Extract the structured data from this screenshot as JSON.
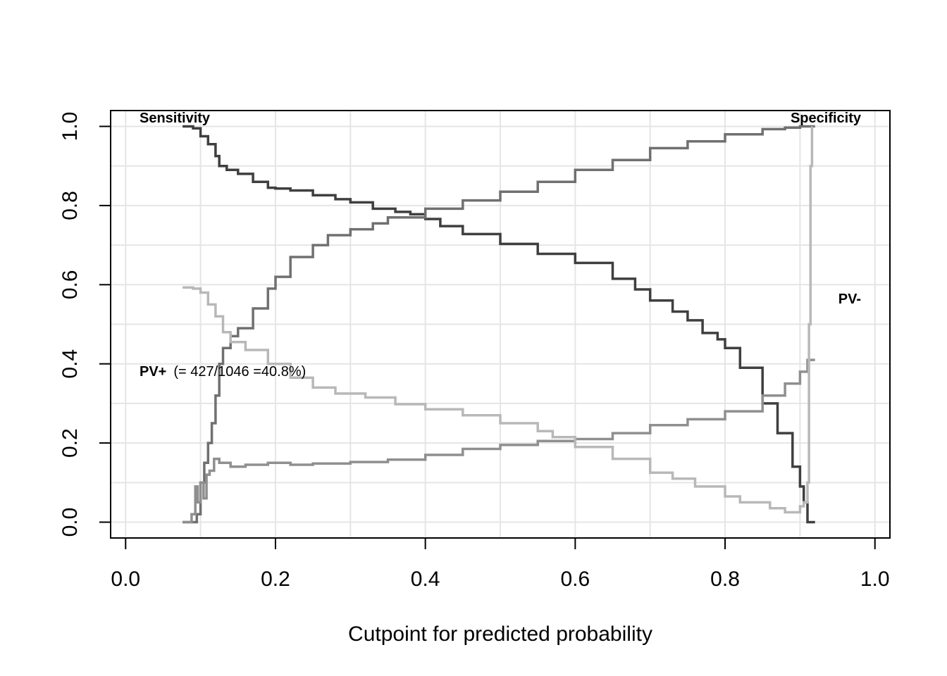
{
  "chart_data": {
    "type": "line",
    "title": "",
    "xlabel": "Cutpoint for predicted probability",
    "ylabel": "",
    "xlim": [
      -0.02,
      1.02
    ],
    "ylim": [
      -0.04,
      1.04
    ],
    "x_ticks": [
      "0.0",
      "0.2",
      "0.4",
      "0.6",
      "0.8",
      "1.0"
    ],
    "y_ticks": [
      "0.0",
      "0.2",
      "0.4",
      "0.6",
      "0.8",
      "1.0"
    ],
    "grid": true,
    "annotations": {
      "sensitivity": "Sensitivity",
      "specificity": "Specificity",
      "pv_minus": "PV-",
      "pv_plus": "PV+",
      "pv_plus_detail": "(= 427/1046 =40.8%)"
    },
    "colors": {
      "sensitivity": "#3f3f3f",
      "specificity": "#707070",
      "pv_plus": "#8f8f8f",
      "pv_minus": "#b8b8b8",
      "grid": "#e5e5e5"
    },
    "series": [
      {
        "name": "Sensitivity",
        "color": "#3f3f3f",
        "step": true,
        "x": [
          0.076,
          0.09,
          0.1,
          0.11,
          0.12,
          0.125,
          0.135,
          0.15,
          0.17,
          0.19,
          0.2,
          0.22,
          0.25,
          0.28,
          0.3,
          0.33,
          0.36,
          0.38,
          0.4,
          0.42,
          0.45,
          0.5,
          0.55,
          0.6,
          0.65,
          0.68,
          0.7,
          0.73,
          0.75,
          0.77,
          0.79,
          0.8,
          0.82,
          0.85,
          0.87,
          0.89,
          0.9,
          0.905,
          0.91,
          0.92
        ],
        "y": [
          1.0,
          0.995,
          0.975,
          0.955,
          0.925,
          0.9,
          0.89,
          0.88,
          0.86,
          0.845,
          0.843,
          0.838,
          0.826,
          0.816,
          0.808,
          0.792,
          0.784,
          0.778,
          0.766,
          0.748,
          0.728,
          0.703,
          0.678,
          0.655,
          0.615,
          0.588,
          0.56,
          0.532,
          0.51,
          0.478,
          0.462,
          0.44,
          0.39,
          0.3,
          0.225,
          0.14,
          0.09,
          0.05,
          0.0,
          0.0
        ]
      },
      {
        "name": "Specificity",
        "color": "#707070",
        "step": true,
        "x": [
          0.076,
          0.09,
          0.095,
          0.1,
          0.105,
          0.11,
          0.115,
          0.12,
          0.125,
          0.13,
          0.14,
          0.15,
          0.17,
          0.19,
          0.2,
          0.22,
          0.25,
          0.27,
          0.3,
          0.33,
          0.35,
          0.4,
          0.45,
          0.5,
          0.55,
          0.6,
          0.65,
          0.7,
          0.75,
          0.8,
          0.85,
          0.88,
          0.9,
          0.92
        ],
        "y": [
          0.0,
          0.0,
          0.02,
          0.1,
          0.15,
          0.2,
          0.25,
          0.32,
          0.4,
          0.44,
          0.47,
          0.49,
          0.54,
          0.59,
          0.62,
          0.67,
          0.7,
          0.725,
          0.74,
          0.755,
          0.77,
          0.792,
          0.813,
          0.835,
          0.86,
          0.89,
          0.915,
          0.945,
          0.962,
          0.98,
          0.993,
          0.997,
          1.0,
          1.0
        ]
      },
      {
        "name": "PV+",
        "color": "#8f8f8f",
        "step": true,
        "x": [
          0.076,
          0.088,
          0.093,
          0.096,
          0.1,
          0.104,
          0.108,
          0.112,
          0.118,
          0.125,
          0.14,
          0.16,
          0.19,
          0.22,
          0.25,
          0.3,
          0.35,
          0.4,
          0.45,
          0.5,
          0.55,
          0.6,
          0.65,
          0.7,
          0.75,
          0.8,
          0.85,
          0.88,
          0.9,
          0.91,
          0.92
        ],
        "y": [
          0.0,
          0.02,
          0.09,
          0.05,
          0.1,
          0.06,
          0.12,
          0.13,
          0.16,
          0.15,
          0.14,
          0.145,
          0.15,
          0.145,
          0.148,
          0.152,
          0.158,
          0.17,
          0.185,
          0.195,
          0.205,
          0.21,
          0.225,
          0.245,
          0.26,
          0.28,
          0.32,
          0.35,
          0.38,
          0.41,
          0.41
        ]
      },
      {
        "name": "PV-",
        "color": "#b8b8b8",
        "step": true,
        "x": [
          0.076,
          0.09,
          0.1,
          0.11,
          0.12,
          0.13,
          0.14,
          0.16,
          0.19,
          0.22,
          0.25,
          0.28,
          0.32,
          0.36,
          0.4,
          0.45,
          0.5,
          0.55,
          0.57,
          0.6,
          0.65,
          0.7,
          0.73,
          0.76,
          0.8,
          0.82,
          0.86,
          0.88,
          0.9,
          0.905,
          0.91,
          0.912,
          0.914,
          0.916
        ],
        "y": [
          0.593,
          0.59,
          0.58,
          0.55,
          0.52,
          0.48,
          0.455,
          0.435,
          0.4,
          0.365,
          0.34,
          0.325,
          0.315,
          0.298,
          0.285,
          0.27,
          0.25,
          0.23,
          0.215,
          0.19,
          0.16,
          0.125,
          0.11,
          0.09,
          0.065,
          0.05,
          0.035,
          0.025,
          0.04,
          0.05,
          0.1,
          0.5,
          0.9,
          1.0
        ]
      }
    ]
  }
}
